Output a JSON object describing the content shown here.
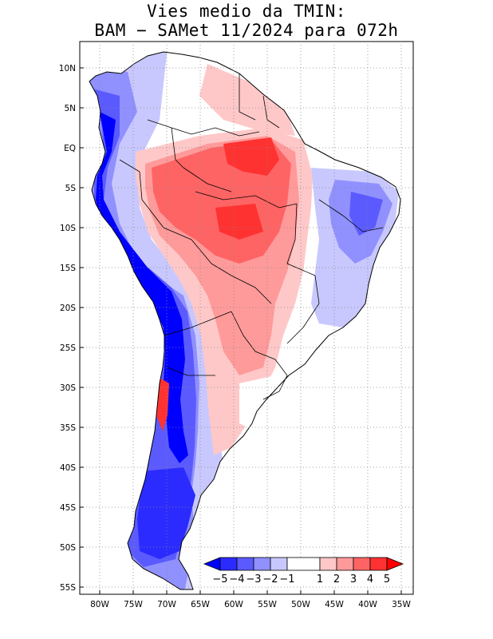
{
  "title": {
    "line1": "Vies medio da TMIN:",
    "line2": "BAM − SAMet 11/2024  para 072h"
  },
  "axes": {
    "lat_labels": [
      "10N",
      "5N",
      "EQ",
      "5S",
      "10S",
      "15S",
      "20S",
      "25S",
      "30S",
      "35S",
      "40S",
      "45S",
      "50S",
      "55S"
    ],
    "lat_values": [
      10,
      5,
      0,
      -5,
      -10,
      -15,
      -20,
      -25,
      -30,
      -35,
      -40,
      -45,
      -50,
      -55
    ],
    "lon_labels": [
      "80W",
      "75W",
      "70W",
      "65W",
      "60W",
      "55W",
      "50W",
      "45W",
      "40W",
      "35W"
    ],
    "lon_values": [
      -80,
      -75,
      -70,
      -65,
      -60,
      -55,
      -50,
      -45,
      -40,
      -35
    ],
    "lat_range": [
      -55.5,
      13
    ],
    "lon_range": [
      -82,
      -34.5
    ],
    "grid": "dotted"
  },
  "colorbar": {
    "labels": [
      "−5",
      "−4",
      "−3",
      "−2",
      "−1",
      "1",
      "2",
      "3",
      "4",
      "5"
    ],
    "bins": [
      {
        "range": "< -5",
        "color": "#0000ff"
      },
      {
        "range": "-5 to -4",
        "color": "#2b2bff"
      },
      {
        "range": "-4 to -3",
        "color": "#5a5aff"
      },
      {
        "range": "-3 to -2",
        "color": "#9090ff"
      },
      {
        "range": "-2 to -1",
        "color": "#c8c8ff"
      },
      {
        "range": "-1 to 1",
        "color": "#ffffff"
      },
      {
        "range": "1 to 2",
        "color": "#ffc8c8"
      },
      {
        "range": "2 to 3",
        "color": "#ff9a9a"
      },
      {
        "range": "3 to 4",
        "color": "#ff6464"
      },
      {
        "range": "4 to 5",
        "color": "#ff3232"
      },
      {
        "range": "> 5",
        "color": "#ff0000"
      }
    ]
  },
  "colors": {
    "very_cold": "#0000ff",
    "cold": "#5a5aff",
    "cool": "#9090ff",
    "slightly_cool": "#c8c8ff",
    "neutral": "#ffffff",
    "slightly_warm": "#ffc8c8",
    "warm": "#ff9a9a",
    "hot": "#ff6464",
    "very_hot": "#ff3232",
    "border": "#000000"
  }
}
